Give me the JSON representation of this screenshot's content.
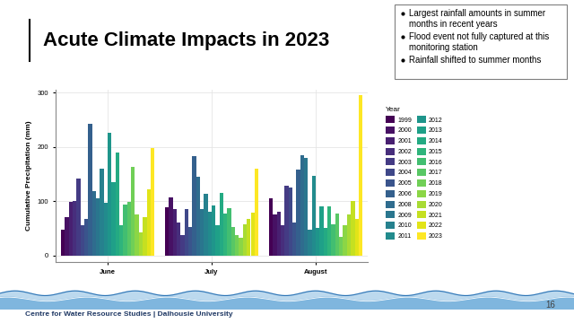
{
  "chart_data": {
    "type": "bar",
    "y_label": "Cumulative Precipitation (mm)",
    "legend_title": "Year",
    "categories": [
      "June",
      "July",
      "August"
    ],
    "series": [
      {
        "name": "1999",
        "values": [
          48,
          88,
          105
        ]
      },
      {
        "name": "2000",
        "values": [
          70,
          107,
          75
        ]
      },
      {
        "name": "2001",
        "values": [
          98,
          85,
          80
        ]
      },
      {
        "name": "2002",
        "values": [
          100,
          60,
          55
        ]
      },
      {
        "name": "2003",
        "values": [
          142,
          37,
          128
        ]
      },
      {
        "name": "2004",
        "values": [
          55,
          86,
          125
        ]
      },
      {
        "name": "2005",
        "values": [
          68,
          53,
          60
        ]
      },
      {
        "name": "2006",
        "values": [
          243,
          182,
          158
        ]
      },
      {
        "name": "2008",
        "values": [
          118,
          145,
          185
        ]
      },
      {
        "name": "2009",
        "values": [
          105,
          85,
          180
        ]
      },
      {
        "name": "2010",
        "values": [
          160,
          113,
          48
        ]
      },
      {
        "name": "2011",
        "values": [
          97,
          80,
          147
        ]
      },
      {
        "name": "2012",
        "values": [
          225,
          92,
          50
        ]
      },
      {
        "name": "2013",
        "values": [
          135,
          55,
          90
        ]
      },
      {
        "name": "2014",
        "values": [
          190,
          115,
          50
        ]
      },
      {
        "name": "2015",
        "values": [
          55,
          77,
          90
        ]
      },
      {
        "name": "2016",
        "values": [
          93,
          87,
          57
        ]
      },
      {
        "name": "2017",
        "values": [
          98,
          53,
          77
        ]
      },
      {
        "name": "2018",
        "values": [
          163,
          37,
          35
        ]
      },
      {
        "name": "2019",
        "values": [
          75,
          33,
          55
        ]
      },
      {
        "name": "2020",
        "values": [
          42,
          57,
          75
        ]
      },
      {
        "name": "2021",
        "values": [
          70,
          67,
          100
        ]
      },
      {
        "name": "2022",
        "values": [
          122,
          78,
          68
        ]
      },
      {
        "name": "2023",
        "values": [
          197,
          160,
          295
        ]
      }
    ],
    "ylim": [
      -12,
      305
    ],
    "yticks": [
      0,
      100,
      200,
      300
    ],
    "grid": true,
    "legend": "center left"
  },
  "slide": {
    "title": "Acute Climate Impacts in 2023",
    "bullets": [
      "Largest rainfall amounts in summer months in recent years",
      "Flood event not fully captured at this monitoring station",
      "Rainfall shifted to summer months"
    ],
    "footer": "Centre for Water Resource Studies | Dalhousie University",
    "page": 16
  }
}
